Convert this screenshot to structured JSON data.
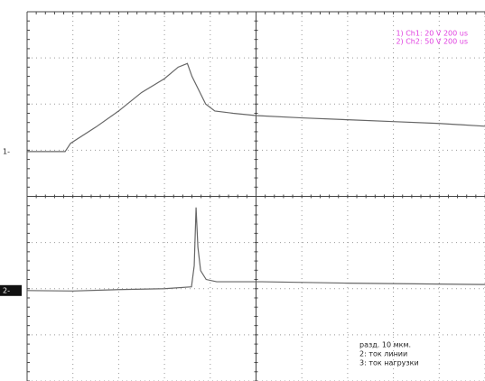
{
  "chart_data": {
    "type": "line",
    "annotations": [
      "1) Ch1: 20 V  200 us",
      "2) Ch2: 50 V  200 us"
    ],
    "notes": [
      "разд. 10 мкм.",
      "2: ток линии",
      "3: ток нагрузки"
    ],
    "markers": [
      "1-",
      "2-"
    ],
    "xlim": [
      0,
      10
    ],
    "ylim": [
      0,
      8
    ],
    "xticks": [
      0,
      1,
      2,
      3,
      4,
      5,
      6,
      7,
      8,
      9,
      10
    ],
    "yticks": [
      0,
      1,
      2,
      3,
      4,
      5,
      6,
      7,
      8
    ],
    "grid": true,
    "series": [
      {
        "color": "#666666",
        "x": [
          0,
          0.83,
          0.95,
          1.5,
          2,
          2.5,
          3.0,
          3.3,
          3.5,
          3.6,
          3.9,
          4.1,
          4.5,
          5.0,
          6,
          7,
          8,
          9,
          10
        ],
        "values": [
          4.97,
          4.97,
          5.15,
          5.5,
          5.85,
          6.25,
          6.55,
          6.8,
          6.88,
          6.6,
          6.0,
          5.85,
          5.8,
          5.75,
          5.7,
          5.66,
          5.62,
          5.58,
          5.52
        ]
      },
      {
        "color": "#666666",
        "x": [
          0,
          1,
          2,
          3,
          3.59,
          3.65,
          3.69,
          3.73,
          3.79,
          3.91,
          4.14,
          5.13,
          7,
          10
        ],
        "values": [
          1.96,
          1.95,
          1.98,
          2.0,
          2.04,
          2.5,
          3.76,
          2.9,
          2.39,
          2.2,
          2.15,
          2.15,
          2.12,
          2.09
        ]
      }
    ]
  }
}
